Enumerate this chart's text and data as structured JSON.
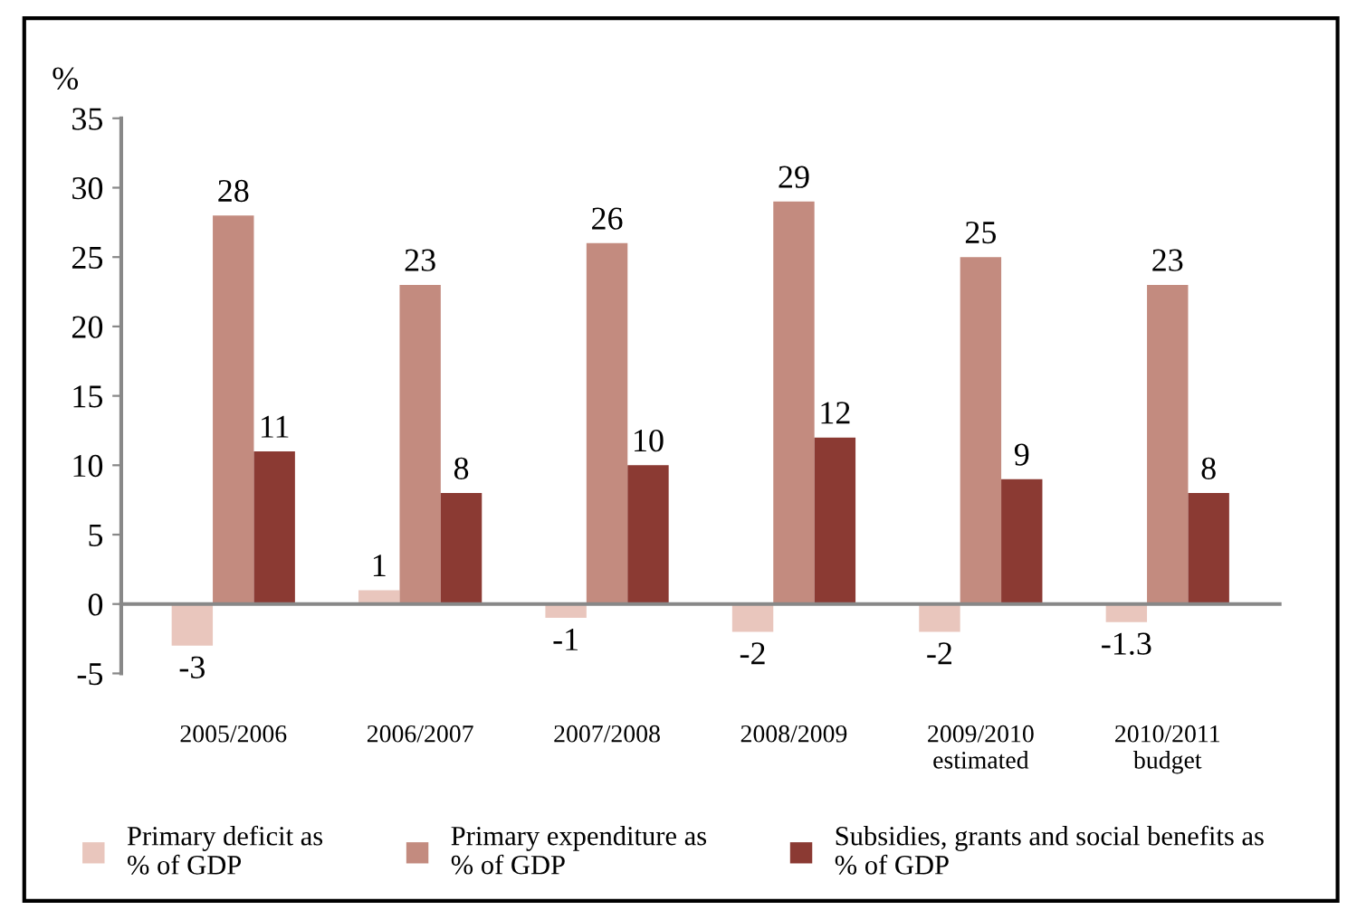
{
  "chart_data": {
    "type": "bar",
    "ylabel": "%",
    "categories": [
      "2005/2006",
      "2006/2007",
      "2007/2008",
      "2008/2009",
      "2009/2010\nestimated",
      "2010/2011\nbudget"
    ],
    "series": [
      {
        "name": "Primary deficit as\n% of GDP",
        "color": "#e9c6bd",
        "values": [
          -3,
          1,
          -1,
          -2,
          -2,
          -1.3
        ]
      },
      {
        "name": "Primary expenditure as\n% of GDP",
        "color": "#c38b7f",
        "values": [
          28,
          23,
          26,
          29,
          25,
          23
        ]
      },
      {
        "name": "Subsidies, grants and social benefits as\n% of GDP",
        "color": "#8b3a33",
        "values": [
          11,
          8,
          10,
          12,
          9,
          8
        ]
      }
    ],
    "ylim": [
      -5,
      35
    ],
    "yticks": [
      -5,
      0,
      5,
      10,
      15,
      20,
      25,
      30,
      35
    ],
    "legend": "bottom",
    "data_labels": true
  }
}
